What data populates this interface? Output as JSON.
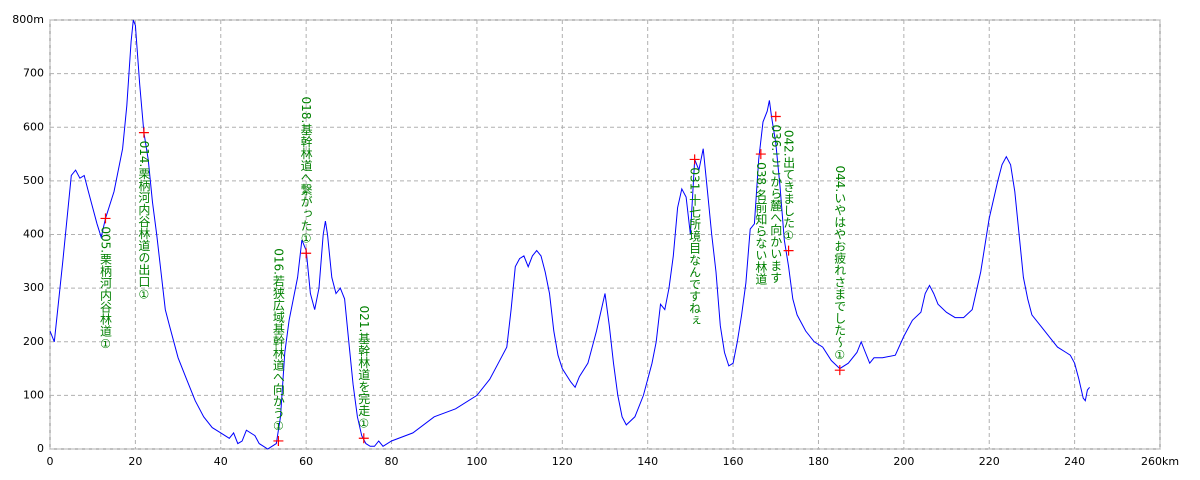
{
  "chart_data": {
    "type": "line",
    "x": [
      0,
      1,
      3,
      5,
      6,
      7,
      8,
      9,
      10,
      11,
      12,
      13,
      15,
      17,
      18,
      19,
      19.5,
      20,
      21,
      22,
      23,
      24,
      25,
      26,
      27,
      28,
      30,
      32,
      34,
      36,
      38,
      40,
      42,
      43,
      44,
      45,
      46,
      48,
      49,
      50,
      51,
      52,
      53,
      54,
      55,
      56,
      58,
      59,
      60,
      61,
      62,
      63,
      64,
      64.5,
      65,
      66,
      67,
      68,
      69,
      70,
      71,
      72,
      73,
      74,
      75,
      76,
      77,
      78,
      80,
      85,
      90,
      95,
      100,
      103,
      105,
      107,
      108,
      109,
      110,
      111,
      112,
      113,
      114,
      115,
      116,
      117,
      118,
      119,
      120,
      122,
      123,
      124,
      126,
      128,
      130,
      131,
      132,
      133,
      134,
      135,
      137,
      139,
      141,
      142,
      143,
      144,
      145,
      146,
      147,
      148,
      149,
      150,
      151,
      152,
      153,
      154,
      155,
      156,
      157,
      158,
      159,
      160,
      161,
      162,
      163,
      164,
      165,
      166,
      167,
      168,
      168.5,
      169,
      170,
      171,
      172,
      173,
      174,
      175,
      177,
      179,
      181,
      183,
      185,
      187,
      189,
      190,
      191,
      192,
      193,
      195,
      198,
      200,
      202,
      204,
      205,
      206,
      207,
      208,
      210,
      212,
      214,
      216,
      218,
      220,
      222,
      223,
      224,
      225,
      226,
      227,
      228,
      229,
      230,
      232,
      234,
      236,
      238,
      239,
      240,
      241,
      242,
      242.5,
      243,
      243.5
    ],
    "values": [
      220,
      200,
      350,
      510,
      520,
      505,
      510,
      480,
      450,
      420,
      395,
      430,
      480,
      560,
      640,
      760,
      800,
      790,
      680,
      590,
      540,
      460,
      400,
      330,
      260,
      230,
      170,
      130,
      90,
      60,
      40,
      30,
      20,
      30,
      10,
      15,
      35,
      25,
      10,
      5,
      0,
      5,
      10,
      60,
      180,
      240,
      320,
      390,
      370,
      290,
      260,
      300,
      400,
      425,
      400,
      320,
      290,
      300,
      280,
      200,
      120,
      60,
      25,
      10,
      5,
      5,
      15,
      5,
      15,
      30,
      60,
      75,
      100,
      130,
      160,
      190,
      260,
      340,
      355,
      360,
      340,
      360,
      370,
      360,
      330,
      290,
      220,
      175,
      150,
      125,
      115,
      135,
      160,
      220,
      290,
      230,
      160,
      100,
      60,
      45,
      60,
      100,
      160,
      200,
      270,
      260,
      300,
      360,
      450,
      485,
      470,
      400,
      540,
      520,
      560,
      480,
      400,
      330,
      230,
      180,
      155,
      160,
      200,
      250,
      310,
      410,
      420,
      540,
      610,
      630,
      650,
      620,
      570,
      490,
      390,
      340,
      280,
      250,
      220,
      200,
      190,
      165,
      150,
      160,
      180,
      200,
      180,
      160,
      170,
      170,
      175,
      210,
      240,
      255,
      290,
      305,
      290,
      270,
      255,
      245,
      245,
      260,
      330,
      430,
      500,
      530,
      545,
      530,
      480,
      400,
      320,
      280,
      250,
      230,
      210,
      190,
      180,
      175,
      160,
      130,
      95,
      90,
      110,
      115
    ],
    "color": "#0000ff",
    "xlim": [
      0,
      260
    ],
    "xticks": [
      0,
      20,
      40,
      60,
      80,
      100,
      120,
      140,
      160,
      180,
      200,
      220,
      240,
      {
        "value": 260,
        "label": "260km"
      }
    ],
    "ylim": [
      0,
      800
    ],
    "yticks": [
      0,
      100,
      200,
      300,
      400,
      500,
      600,
      700,
      {
        "value": 800,
        "label": "800m"
      }
    ],
    "grid": true,
    "marker_color": "#ff0000",
    "label_color": "#008000",
    "annotations": [
      {
        "x": 13,
        "y": 430,
        "label": "005.栗柄河内谷林道①"
      },
      {
        "x": 22,
        "y": 590,
        "label": "014.栗柄河内谷林道の出口①"
      },
      {
        "x": 53.5,
        "y": 15,
        "label": "016.若狭広域基幹林道へ向かう①"
      },
      {
        "x": 60,
        "y": 365,
        "label": "018.基幹林道へ繋がった①"
      },
      {
        "x": 73.5,
        "y": 20,
        "label": "021.基幹林道を完走①"
      },
      {
        "x": 151,
        "y": 540,
        "label": "031.十七所境目なんですねぇ"
      },
      {
        "x": 166.5,
        "y": 550,
        "label": "038.名前知らない林道"
      },
      {
        "x": 170,
        "y": 620,
        "label": "036.ここから麓へ向かいます"
      },
      {
        "x": 173,
        "y": 370,
        "label": "042.出てきました①"
      },
      {
        "x": 185,
        "y": 147,
        "label": "044.いやはやお疲れさまでした～①"
      }
    ]
  }
}
